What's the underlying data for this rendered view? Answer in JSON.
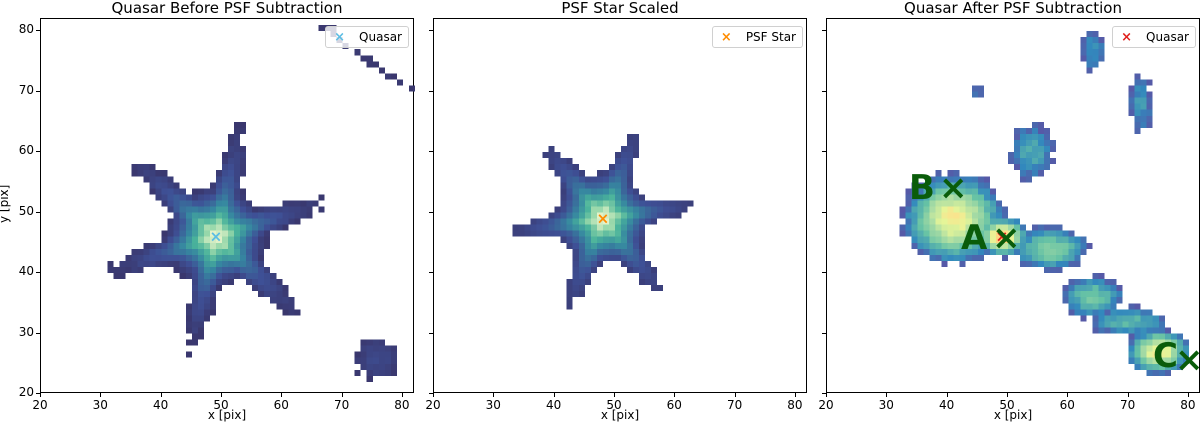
{
  "chart_data": [
    {
      "type": "heatmap",
      "title": "Quasar Before PSF Subtraction",
      "xlabel": "x [pix]",
      "ylabel": "y [pix]",
      "xlim": [
        20,
        82
      ],
      "ylim": [
        20,
        82
      ],
      "xticks": [
        20,
        30,
        40,
        50,
        60,
        70,
        80
      ],
      "yticks": [
        20,
        30,
        40,
        50,
        60,
        70,
        80
      ],
      "colormap": "mako (dark purple to pale yellow)",
      "legend": [
        {
          "label": "Quasar",
          "marker": "x",
          "color": "#5bbde4"
        }
      ],
      "markers": [
        {
          "label": "Quasar",
          "x": 49,
          "y": 46,
          "color": "#5bbde4"
        }
      ],
      "legend_position": "upper right"
    },
    {
      "type": "heatmap",
      "title": "PSF Star Scaled",
      "xlabel": "x [pix]",
      "ylabel": "",
      "xlim": [
        20,
        82
      ],
      "ylim": [
        20,
        82
      ],
      "xticks": [
        20,
        30,
        40,
        50,
        60,
        70,
        80
      ],
      "yticks": [
        20,
        30,
        40,
        50,
        60,
        70,
        80
      ],
      "colormap": "mako (dark purple to pale yellow)",
      "legend": [
        {
          "label": "PSF Star",
          "marker": "x",
          "color": "#ff8c00"
        }
      ],
      "markers": [
        {
          "label": "PSF Star",
          "x": 48,
          "y": 49,
          "color": "#ff8c00"
        }
      ],
      "legend_position": "upper right"
    },
    {
      "type": "heatmap",
      "title": "Quasar After PSF Subtraction",
      "xlabel": "x [pix]",
      "ylabel": "",
      "xlim": [
        20,
        82
      ],
      "ylim": [
        20,
        82
      ],
      "xticks": [
        20,
        30,
        40,
        50,
        60,
        70,
        80
      ],
      "yticks": [
        20,
        30,
        40,
        50,
        60,
        70,
        80
      ],
      "colormap": "Spectral_r-like (purple/blue/green/yellow/orange)",
      "legend": [
        {
          "label": "Quasar",
          "marker": "x",
          "color": "#e0201c"
        }
      ],
      "markers": [
        {
          "label": "Quasar",
          "x": 49,
          "y": 46,
          "color": "#e0201c"
        }
      ],
      "annotations": [
        {
          "text": "A",
          "x": 50.5,
          "y": 45,
          "color": "#0a5c0a"
        },
        {
          "text": "B",
          "x": 41,
          "y": 53,
          "color": "#0a5c0a"
        },
        {
          "text": "C",
          "x": 80,
          "y": 25,
          "color": "#0a5c0a"
        }
      ],
      "legend_position": "upper right"
    }
  ],
  "panels": [
    {
      "title": "Quasar Before PSF Subtraction",
      "xlabel": "x [pix]",
      "ylabel": "y [pix]",
      "legend_label": "Quasar",
      "legend_marker": "×"
    },
    {
      "title": "PSF Star Scaled",
      "xlabel": "x [pix]",
      "ylabel": "",
      "legend_label": "PSF Star",
      "legend_marker": "×"
    },
    {
      "title": "Quasar After PSF Subtraction",
      "xlabel": "x [pix]",
      "ylabel": "",
      "legend_label": "Quasar",
      "legend_marker": "×"
    }
  ],
  "tick_labels": [
    "20",
    "30",
    "40",
    "50",
    "60",
    "70",
    "80"
  ],
  "annotations": {
    "A": "A",
    "B": "B",
    "C": "C",
    "cross": "×"
  },
  "colors": {
    "quasar_marker": "#5bbde4",
    "psf_marker": "#ff8c00",
    "after_marker": "#e0201c",
    "annotation": "#0a5c0a"
  }
}
